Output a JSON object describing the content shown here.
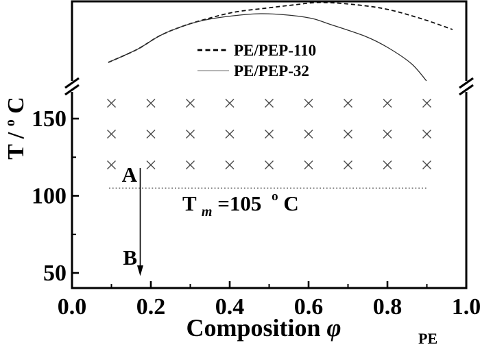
{
  "chart_data": {
    "type": "line",
    "title": "",
    "xlabel": {
      "text": "Composition ",
      "symbol": "φ",
      "symbol_sub": "PE"
    },
    "ylabel": {
      "text": "T / ",
      "degree": "o",
      "unit": "C"
    },
    "xlim": [
      0.0,
      1.0
    ],
    "x_tick_labels": [
      "0.0",
      "0.2",
      "0.4",
      "0.6",
      "0.8",
      "1.0"
    ],
    "x_ticks_major": [
      0.0,
      0.2,
      0.4,
      0.6,
      0.8,
      1.0
    ],
    "x_ticks_minor": [
      0.1,
      0.3,
      0.5,
      0.7,
      0.9
    ],
    "y_tick_labels": [
      "150",
      "100",
      "50"
    ],
    "y_ticks_major": [
      150,
      100,
      50
    ],
    "y_ticks_minor": [
      125,
      75
    ],
    "y_axis": {
      "has_break": true,
      "lower_panel_T_range": [
        40,
        171
      ],
      "upper_panel_note": "binodal curves drawn above axis break on unlabeled compressed temperature scale"
    },
    "legend": {
      "position": "upper-center",
      "entries": [
        {
          "label": "PE/PEP-110",
          "line_style": "dashed",
          "sample_color": "#000000"
        },
        {
          "label": "PE/PEP-32",
          "line_style": "solid",
          "sample_color": "#8a8a8a"
        }
      ]
    },
    "series": [
      {
        "name": "PE/PEP-110",
        "line_style": "dashed",
        "color": "#0d0d0d",
        "points_phi_relheight": [
          [
            0.092,
            0.282
          ],
          [
            0.165,
            0.435
          ],
          [
            0.223,
            0.597
          ],
          [
            0.282,
            0.71
          ],
          [
            0.339,
            0.79
          ],
          [
            0.409,
            0.871
          ],
          [
            0.49,
            0.919
          ],
          [
            0.565,
            0.96
          ],
          [
            0.63,
            0.988
          ],
          [
            0.722,
            0.96
          ],
          [
            0.803,
            0.903
          ],
          [
            0.89,
            0.79
          ],
          [
            0.965,
            0.669
          ]
        ]
      },
      {
        "name": "PE/PEP-32",
        "line_style": "solid",
        "color": "#2e2e2e",
        "points_phi_relheight": [
          [
            0.092,
            0.282
          ],
          [
            0.165,
            0.435
          ],
          [
            0.223,
            0.597
          ],
          [
            0.282,
            0.71
          ],
          [
            0.339,
            0.782
          ],
          [
            0.409,
            0.831
          ],
          [
            0.478,
            0.855
          ],
          [
            0.548,
            0.839
          ],
          [
            0.609,
            0.798
          ],
          [
            0.652,
            0.734
          ],
          [
            0.744,
            0.589
          ],
          [
            0.803,
            0.452
          ],
          [
            0.861,
            0.266
          ],
          [
            0.899,
            0.065
          ]
        ]
      }
    ],
    "experiment_grid": {
      "marker": "x",
      "color": "#4d4d4d",
      "phi_values": [
        0.1,
        0.2,
        0.3,
        0.4,
        0.5,
        0.6,
        0.7,
        0.8,
        0.9
      ],
      "T_values": [
        160,
        140,
        120
      ]
    },
    "melting_line": {
      "T": 105,
      "style": "dotted",
      "color": "#444444",
      "phi_start": 0.094,
      "phi_end": 0.9,
      "label": {
        "symbol": "T",
        "sub": "m",
        "value": "=105",
        "degree": "o",
        "unit": "C"
      }
    },
    "quench_arrow": {
      "phi": 0.173,
      "T_start": 118,
      "T_end": 48,
      "start_label": "A",
      "end_label": "B"
    }
  },
  "colors": {
    "axis": "#000000",
    "background": "#ffffff"
  }
}
